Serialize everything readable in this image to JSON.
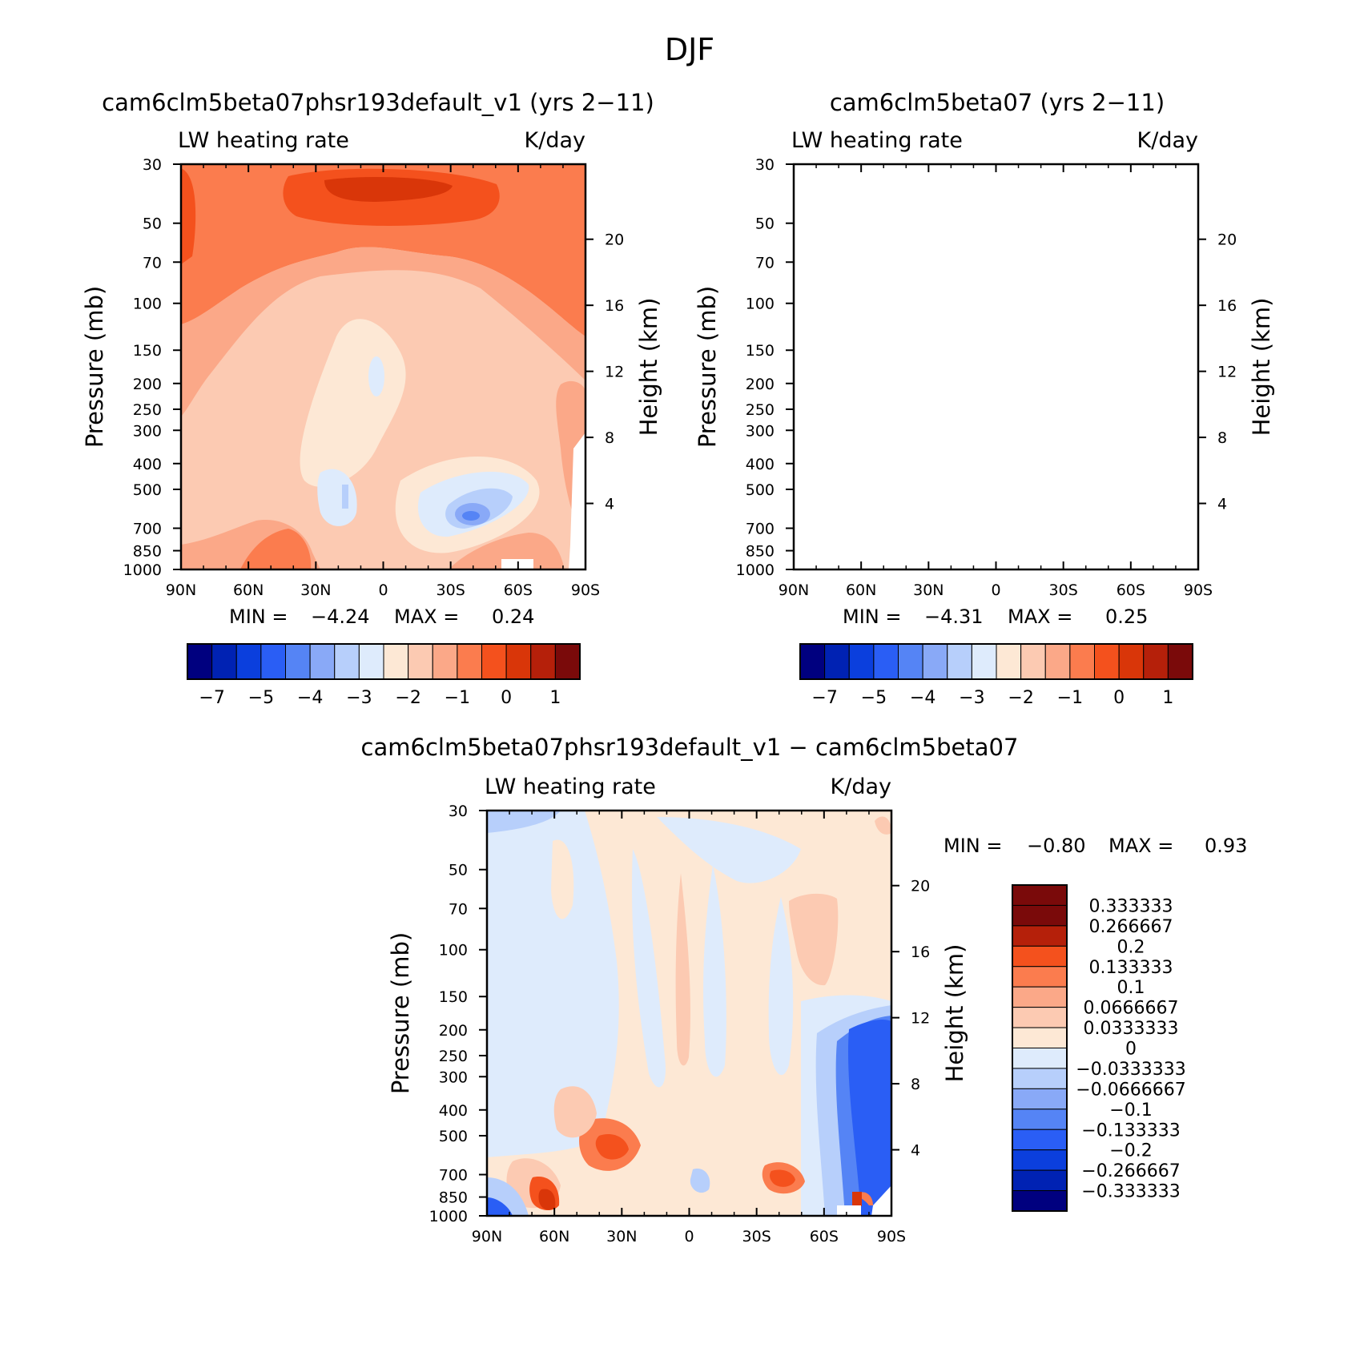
{
  "figure": {
    "title": "DJF"
  },
  "panels": [
    {
      "id": "top-left",
      "title": "cam6clm5beta07phsr193default_v1 (yrs 2−11)",
      "left_label": "LW heating rate",
      "right_label": "K/day",
      "min_label": "MIN =",
      "min_value": "−4.24",
      "max_label": "MAX =",
      "max_value": "0.24"
    },
    {
      "id": "top-right",
      "title": "cam6clm5beta07 (yrs 2−11)",
      "left_label": "LW heating rate",
      "right_label": "K/day",
      "min_label": "MIN =",
      "min_value": "−4.31",
      "max_label": "MAX =",
      "max_value": "0.25"
    },
    {
      "id": "bottom",
      "title": "cam6clm5beta07phsr193default_v1 − cam6clm5beta07",
      "left_label": "LW heating rate",
      "right_label": "K/day",
      "min_label": "MIN =",
      "min_value": "−0.80",
      "max_label": "MAX =",
      "max_value": "0.93"
    }
  ],
  "chart_data": [
    {
      "type": "contour",
      "panel": "top-left",
      "title": "cam6clm5beta07phsr193default_v1 (yrs 2−11)",
      "field": "LW heating rate",
      "units": "K/day",
      "ylabel": "Pressure (mb)",
      "ylabel_right": "Height (km)",
      "x_ticks": [
        "90N",
        "60N",
        "30N",
        "0",
        "30S",
        "60S",
        "90S"
      ],
      "y_ticks": [
        "30",
        "50",
        "70",
        "100",
        "150",
        "200",
        "250",
        "300",
        "400",
        "500",
        "700",
        "850",
        "1000"
      ],
      "y_ticks_right": [
        "20",
        "16",
        "12",
        "8",
        "4"
      ],
      "ylim": [
        1000,
        30
      ],
      "min": -4.24,
      "max": 0.24,
      "colorbar_ticks": [
        "−7",
        "−5",
        "−4",
        "−3",
        "−2",
        "−1",
        "0",
        "1"
      ]
    },
    {
      "type": "contour",
      "panel": "top-right",
      "title": "cam6clm5beta07 (yrs 2−11)",
      "field": "LW heating rate",
      "units": "K/day",
      "ylabel": "Pressure (mb)",
      "ylabel_right": "Height (km)",
      "x_ticks": [
        "90N",
        "60N",
        "30N",
        "0",
        "30S",
        "60S",
        "90S"
      ],
      "y_ticks": [
        "30",
        "50",
        "70",
        "100",
        "150",
        "200",
        "250",
        "300",
        "400",
        "500",
        "700",
        "850",
        "1000"
      ],
      "y_ticks_right": [
        "20",
        "16",
        "12",
        "8",
        "4"
      ],
      "ylim": [
        1000,
        30
      ],
      "min": -4.31,
      "max": 0.25,
      "colorbar_ticks": [
        "−7",
        "−5",
        "−4",
        "−3",
        "−2",
        "−1",
        "0",
        "1"
      ]
    },
    {
      "type": "contour",
      "panel": "bottom",
      "title": "cam6clm5beta07phsr193default_v1 − cam6clm5beta07",
      "field": "LW heating rate",
      "units": "K/day",
      "ylabel": "Pressure (mb)",
      "ylabel_right": "Height (km)",
      "x_ticks": [
        "90N",
        "60N",
        "30N",
        "0",
        "30S",
        "60S",
        "90S"
      ],
      "y_ticks": [
        "30",
        "50",
        "70",
        "100",
        "150",
        "200",
        "250",
        "300",
        "400",
        "500",
        "700",
        "850",
        "1000"
      ],
      "y_ticks_right": [
        "20",
        "16",
        "12",
        "8",
        "4"
      ],
      "ylim": [
        1000,
        30
      ],
      "min": -0.8,
      "max": 0.93,
      "colorbar_ticks": [
        "0.333333",
        "0.266667",
        "0.2",
        "0.133333",
        "0.1",
        "0.0666667",
        "0.0333333",
        "0",
        "−0.0333333",
        "−0.0666667",
        "−0.1",
        "−0.133333",
        "−0.2",
        "−0.266667",
        "−0.333333"
      ]
    }
  ],
  "axes": {
    "pressure_label": "Pressure (mb)",
    "height_label": "Height (km)"
  },
  "colors": {
    "top_colorbar": [
      "#00007f",
      "#0022b3",
      "#0b3fdd",
      "#2a5ef5",
      "#5584f5",
      "#89a9f7",
      "#b7cffb",
      "#deebfc",
      "#fde8d5",
      "#fccab2",
      "#fba888",
      "#fb7c4e",
      "#f4511d",
      "#d93609",
      "#b5200a",
      "#7a0a0a"
    ],
    "diff_colorbar": [
      "#7a0a0a",
      "#b5200a",
      "#f4511d",
      "#fb7c4e",
      "#fba888",
      "#fccab2",
      "#fde8d5",
      "#deebfc",
      "#b7cffb",
      "#89a9f7",
      "#5584f5",
      "#2a5ef5",
      "#0b3fdd",
      "#0022b3",
      "#00007f"
    ],
    "d_lvl3": "#d93609",
    "d_lvl2": "#f4511d",
    "d_lvl1": "#fb7c4e",
    "d_lvl0": "#fccab2",
    "d_zero": "#fde8d5",
    "d_neg1": "#deebfc",
    "d_neg2": "#b7cffb",
    "d_neg3": "#5584f5",
    "d_neg4": "#2a5ef5",
    "f_lvl3": "#f4511d",
    "f_lvl2": "#fb7c4e",
    "f_lvl1": "#fba888",
    "f_lvl0": "#fccab2",
    "f_zero": "#fde8d5",
    "f_neg1": "#deebfc",
    "f_neg2": "#b7cffb",
    "f_neg3": "#89a9f7",
    "f_neg4": "#5584f5",
    "f_deep": "#d93609",
    "white": "#ffffff"
  }
}
